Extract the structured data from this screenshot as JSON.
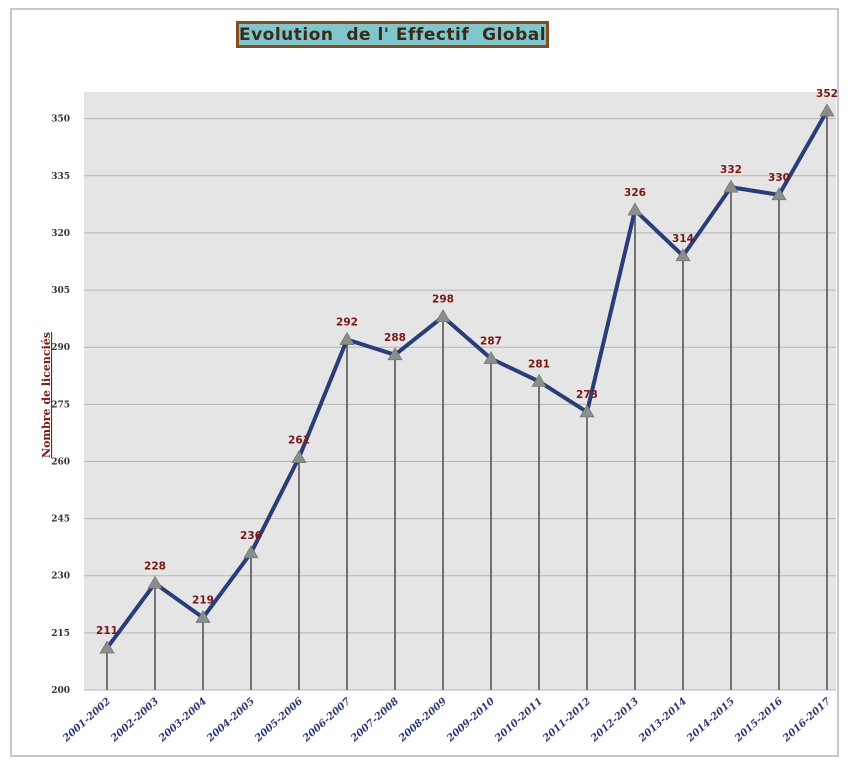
{
  "chart_data": {
    "type": "line",
    "title": "Evolution  de l' Effectif  Global",
    "xlabel": "",
    "ylabel": "Nombre de licenciés",
    "ylim": [
      200,
      357
    ],
    "yticks": [
      200,
      215,
      230,
      245,
      260,
      275,
      290,
      305,
      320,
      335,
      350
    ],
    "grid": true,
    "categories": [
      "2001-2002",
      "2002-2003",
      "2003-2004",
      "2004-2005",
      "2005-2006",
      "2006-2007",
      "2007-2008",
      "2008-2009",
      "2009-2010",
      "2010-2011",
      "2011-2012",
      "2012-2013",
      "2013-2014",
      "2014-2015",
      "2015-2016",
      "2016-2017"
    ],
    "series": [
      {
        "values": [
          211,
          228,
          219,
          236,
          261,
          292,
          288,
          298,
          287,
          281,
          273,
          326,
          314,
          332,
          330,
          352
        ]
      }
    ],
    "data_labels": [
      "211",
      "228",
      "219",
      "236",
      "261",
      "292",
      "288",
      "298",
      "287",
      "281",
      "273",
      "326",
      "314",
      "332",
      "330",
      "352"
    ],
    "colors": {
      "line": "#2b3d78",
      "marker": "#8a8f8a",
      "plot_bg": "#e5e5e5",
      "grid": "#b5b5b5",
      "drop": "#555555"
    }
  }
}
